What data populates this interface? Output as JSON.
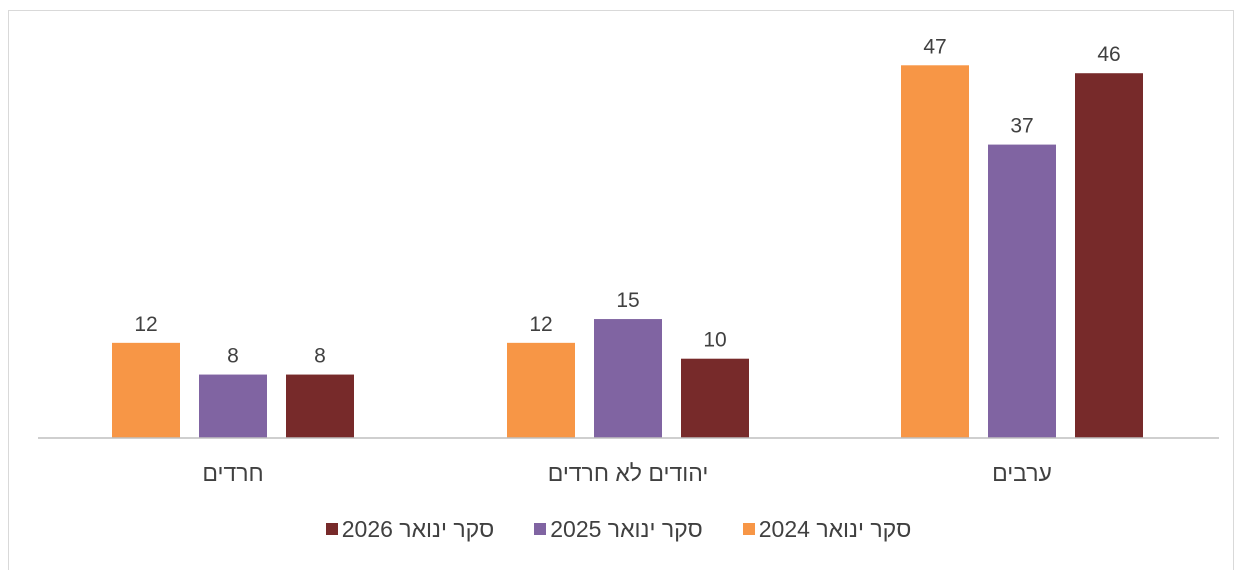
{
  "chart_data": {
    "type": "bar",
    "categories": [
      "ערבים",
      "יהודים לא חרדים",
      "חרדים"
    ],
    "series": [
      {
        "name": "סקר ינואר 2024",
        "values": [
          47,
          12,
          12
        ],
        "color": "#F79646"
      },
      {
        "name": "סקר ינואר 2025",
        "values": [
          37,
          15,
          8
        ],
        "color": "#8064A2"
      },
      {
        "name": "סקר ינואר 2026",
        "values": [
          46,
          10,
          8
        ],
        "color": "#772A2A"
      }
    ],
    "title": "",
    "xlabel": "",
    "ylabel": "",
    "ylim": [
      0,
      50
    ],
    "grid": false,
    "legend_position": "bottom",
    "axis_color": "#BFBFBF",
    "text_color": "#404040"
  }
}
